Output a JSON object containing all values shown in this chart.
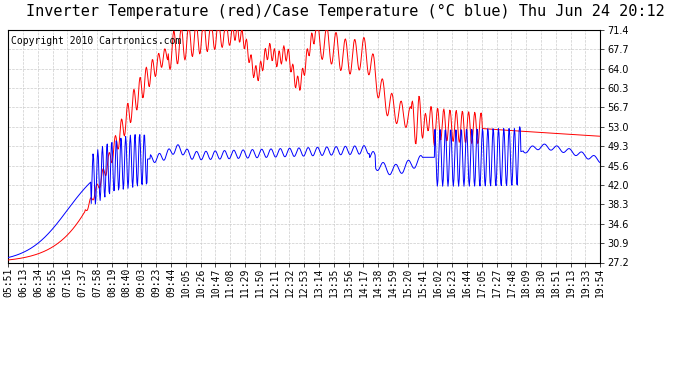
{
  "title": "Inverter Temperature (red)/Case Temperature (°C blue) Thu Jun 24 20:12",
  "copyright": "Copyright 2010 Cartronics.com",
  "y_ticks": [
    27.2,
    30.9,
    34.6,
    38.3,
    42.0,
    45.6,
    49.3,
    53.0,
    56.7,
    60.3,
    64.0,
    67.7,
    71.4
  ],
  "x_labels": [
    "05:51",
    "06:13",
    "06:34",
    "06:55",
    "07:16",
    "07:37",
    "07:58",
    "08:19",
    "08:40",
    "09:03",
    "09:23",
    "09:44",
    "10:05",
    "10:26",
    "10:47",
    "11:08",
    "11:29",
    "11:50",
    "12:11",
    "12:32",
    "12:53",
    "13:14",
    "13:35",
    "13:56",
    "14:17",
    "14:38",
    "14:59",
    "15:20",
    "15:41",
    "16:02",
    "16:23",
    "16:44",
    "17:05",
    "17:27",
    "17:48",
    "18:09",
    "18:30",
    "18:51",
    "19:13",
    "19:33",
    "19:54"
  ],
  "ymin": 27.2,
  "ymax": 71.4,
  "bg_color": "#ffffff",
  "grid_color": "#cccccc",
  "red_color": "#ff0000",
  "blue_color": "#0000ff",
  "title_fontsize": 11,
  "copyright_fontsize": 7,
  "tick_fontsize": 7
}
